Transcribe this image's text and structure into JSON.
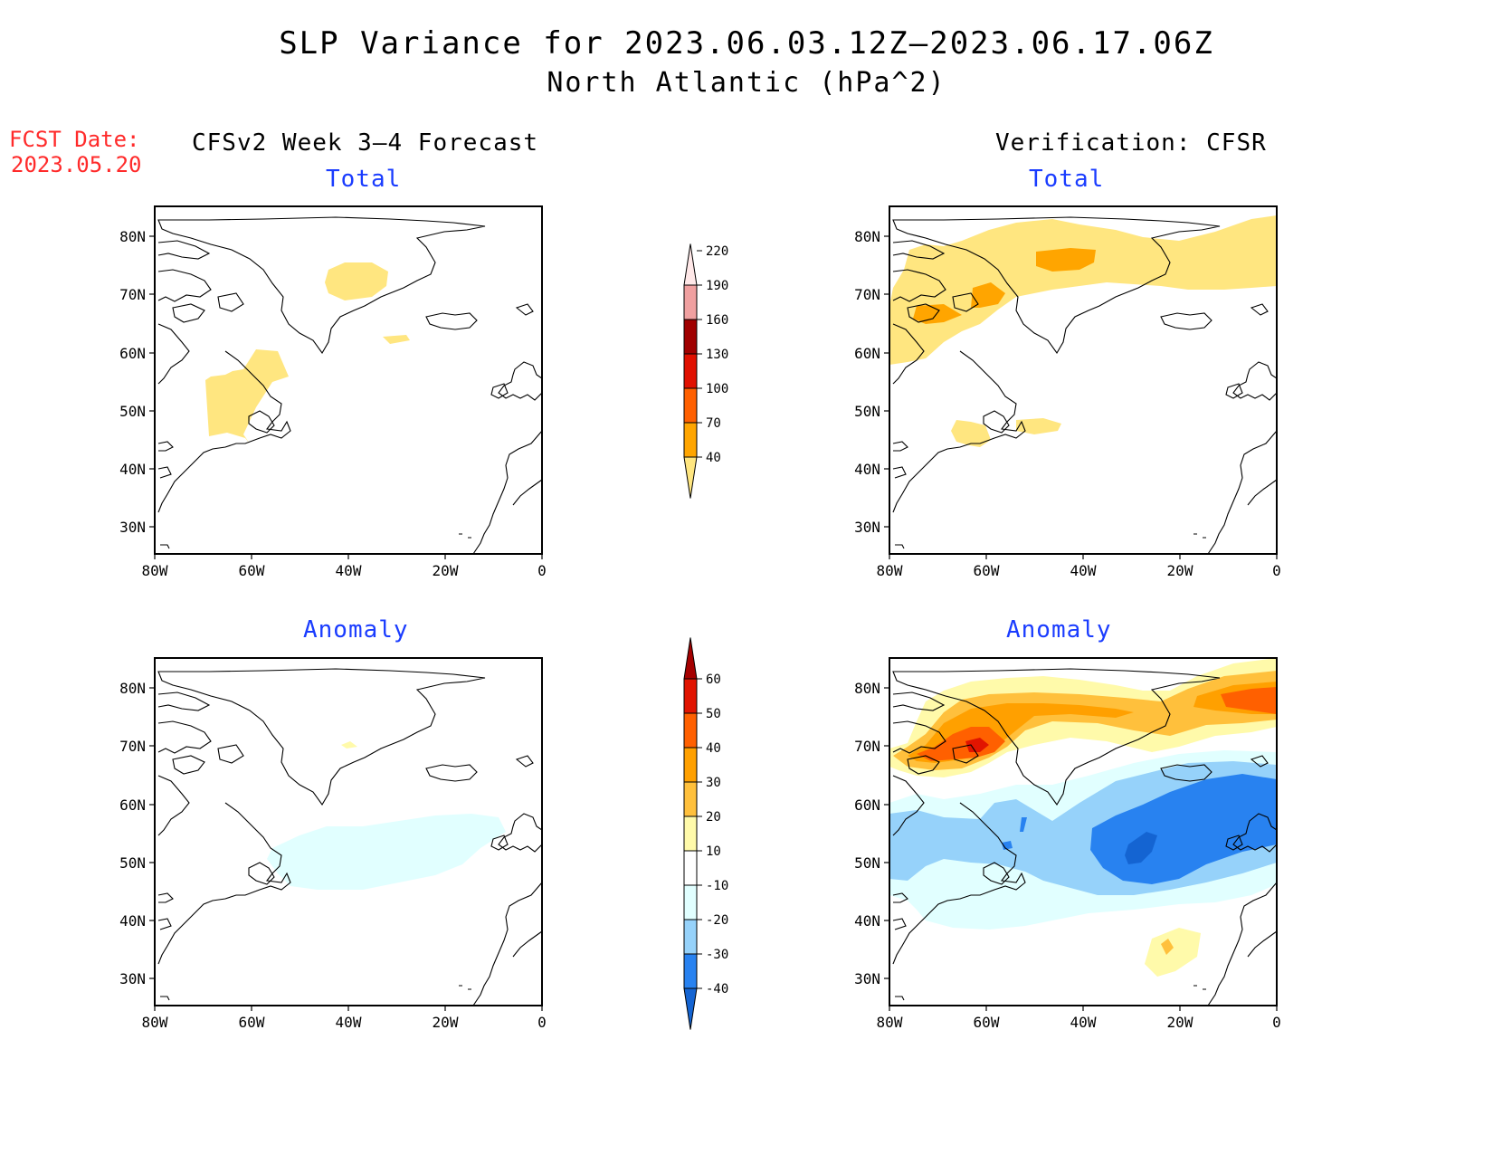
{
  "title": "SLP Variance for 2023.06.03.12Z—2023.06.17.06Z",
  "subtitle": "North Atlantic (hPa^2)",
  "fcst_label": "FCST Date:",
  "fcst_date": "2023.05.20",
  "column_left": "CFSv2 Week 3—4 Forecast",
  "column_right": "Verification: CFSR",
  "panel_total": "Total",
  "panel_anomaly": "Anomaly",
  "axes": {
    "lat_labels": [
      "80N",
      "70N",
      "60N",
      "50N",
      "40N",
      "30N"
    ],
    "lon_labels": [
      "80W",
      "60W",
      "40W",
      "20W",
      "0"
    ]
  },
  "colorbars": {
    "total": {
      "levels": [
        "40",
        "70",
        "100",
        "130",
        "160",
        "190",
        "220"
      ],
      "colors": [
        "#ffe680",
        "#ffa500",
        "#ff6000",
        "#e01000",
        "#a00000",
        "#f0a0a0",
        "#ffe8e8"
      ]
    },
    "anomaly": {
      "levels": [
        "-40",
        "-30",
        "-20",
        "-10",
        "10",
        "20",
        "30",
        "40",
        "50",
        "60"
      ],
      "colors": [
        "#1464d2",
        "#2882f0",
        "#96d2fa",
        "#e1ffff",
        "#ffffff",
        "#fffaaa",
        "#ffc03c",
        "#ffa000",
        "#ff6000",
        "#e11400",
        "#a50000"
      ]
    }
  },
  "palette": {
    "light_yellow": "#ffe680",
    "orange": "#ffa500",
    "dark_orange": "#ff7800",
    "red": "#e11400",
    "pale_yellow": "#fffaaa",
    "light_orange": "#ffc03c",
    "pale_cyan": "#e1ffff",
    "light_blue": "#96d2fa",
    "blue": "#2882f0",
    "dark_blue": "#1464d2"
  }
}
